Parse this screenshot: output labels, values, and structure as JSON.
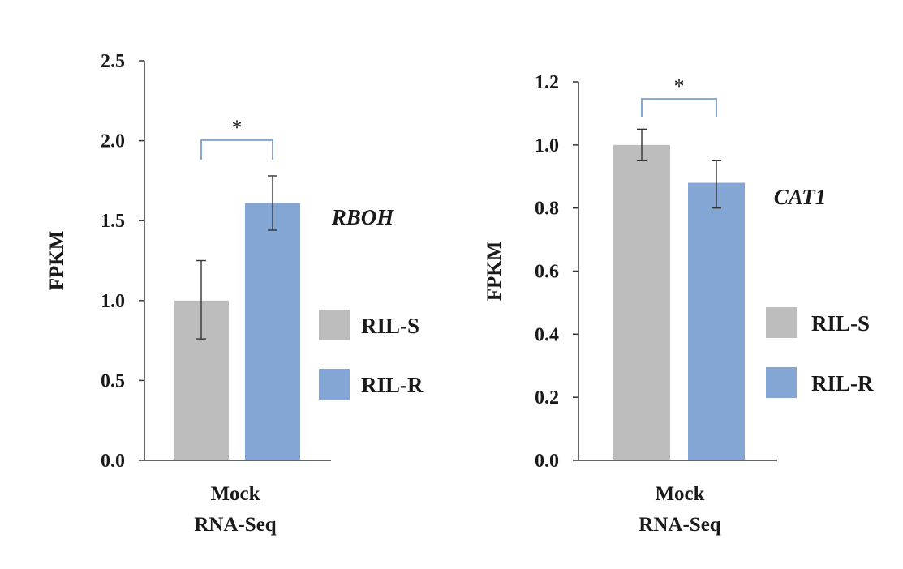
{
  "chart_data": [
    {
      "type": "bar",
      "gene": "RBOH",
      "ylabel": "FPKM",
      "xlabel_lines": [
        "Mock",
        "RNA-Seq"
      ],
      "ylim": [
        0,
        2.5
      ],
      "yticks": [
        0.0,
        0.5,
        1.0,
        1.5,
        2.0,
        2.5
      ],
      "ytick_labels": [
        "0.0",
        "0.5",
        "1.0",
        "1.5",
        "2.0",
        "2.5"
      ],
      "series": [
        {
          "name": "RIL-S",
          "value": 1.0,
          "err_low": 0.76,
          "err_high": 1.25
        },
        {
          "name": "RIL-R",
          "value": 1.61,
          "err_low": 1.44,
          "err_high": 1.78
        }
      ],
      "significance": "*"
    },
    {
      "type": "bar",
      "gene": "CAT1",
      "ylabel": "FPKM",
      "xlabel_lines": [
        "Mock",
        "RNA-Seq"
      ],
      "ylim": [
        0,
        1.2
      ],
      "yticks": [
        0.0,
        0.2,
        0.4,
        0.6,
        0.8,
        1.0,
        1.2
      ],
      "ytick_labels": [
        "0.0",
        "0.2",
        "0.4",
        "0.6",
        "0.8",
        "1.0",
        "1.2"
      ],
      "series": [
        {
          "name": "RIL-S",
          "value": 1.0,
          "err_low": 0.95,
          "err_high": 1.05
        },
        {
          "name": "RIL-R",
          "value": 0.88,
          "err_low": 0.8,
          "err_high": 0.95
        }
      ],
      "significance": "*"
    }
  ],
  "colors": {
    "RIL-S": "#bdbdbd",
    "RIL-R": "#84a6d4",
    "bracket": "#7b9fcf"
  }
}
